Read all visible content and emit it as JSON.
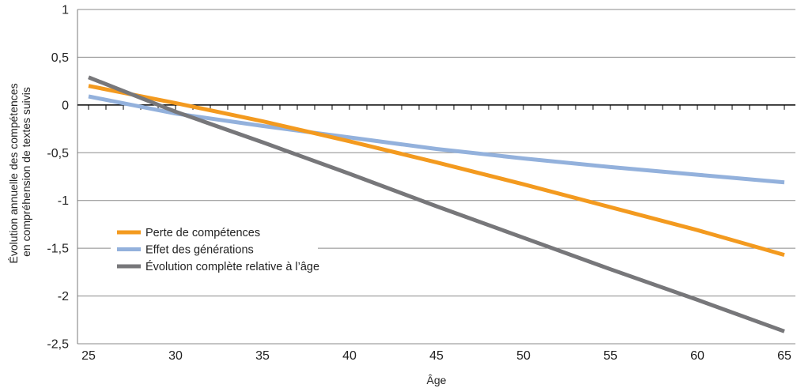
{
  "chart_data": {
    "type": "line",
    "xlabel": "Âge",
    "ylabel_lines": [
      "Évolution annuelle des compétences",
      "en compréhension de textes suivis"
    ],
    "xlim": [
      25,
      65
    ],
    "ylim": [
      -2.5,
      1
    ],
    "x_ticks": [
      25,
      30,
      35,
      40,
      45,
      50,
      55,
      60,
      65
    ],
    "y_ticks": [
      1,
      0.5,
      0,
      -0.5,
      -1,
      -1.5,
      -2,
      -2.5
    ],
    "y_tick_labels": [
      "1",
      "0,5",
      "0",
      "-0,5",
      "-1",
      "-1,5",
      "-2",
      "-2,5"
    ],
    "grid": "horizontal",
    "legend_position": "lower-left",
    "series": [
      {
        "name": "Perte de compétences",
        "color": "#F39A1F",
        "x": [
          25,
          30,
          35,
          40,
          45,
          50,
          55,
          60,
          65
        ],
        "y": [
          0.2,
          0.02,
          -0.17,
          -0.38,
          -0.6,
          -0.83,
          -1.07,
          -1.31,
          -1.57
        ]
      },
      {
        "name": "Effet des générations",
        "color": "#93B1DC",
        "x": [
          25,
          30,
          35,
          40,
          45,
          50,
          55,
          60,
          65
        ],
        "y": [
          0.09,
          -0.09,
          -0.22,
          -0.34,
          -0.46,
          -0.56,
          -0.65,
          -0.73,
          -0.81
        ]
      },
      {
        "name": "Évolution complète relative à l’âge",
        "color": "#77777A",
        "x": [
          25,
          30,
          35,
          40,
          45,
          50,
          55,
          60,
          65
        ],
        "y": [
          0.29,
          -0.07,
          -0.39,
          -0.72,
          -1.06,
          -1.39,
          -1.72,
          -2.04,
          -2.37
        ]
      }
    ]
  }
}
